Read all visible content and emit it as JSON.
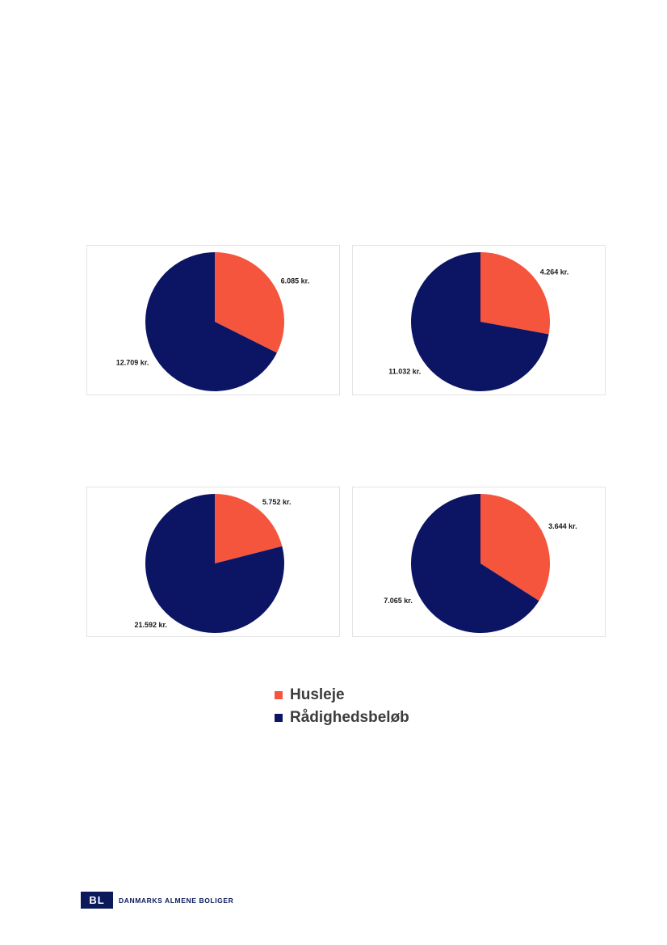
{
  "colors": {
    "husleje": "#f5553c",
    "raadighed": "#0c1464"
  },
  "chart_data": [
    {
      "type": "pie",
      "labels": [
        "Husleje",
        "Rådighedsbeløb"
      ],
      "values": [
        6085,
        12709
      ],
      "value_labels": [
        "6.085 kr.",
        "12.709 kr."
      ]
    },
    {
      "type": "pie",
      "labels": [
        "Husleje",
        "Rådighedsbeløb"
      ],
      "values": [
        4264,
        11032
      ],
      "value_labels": [
        "4.264 kr.",
        "11.032 kr."
      ]
    },
    {
      "type": "pie",
      "labels": [
        "Husleje",
        "Rådighedsbeløb"
      ],
      "values": [
        5752,
        21592
      ],
      "value_labels": [
        "5.752 kr.",
        "21.592 kr."
      ]
    },
    {
      "type": "pie",
      "labels": [
        "Husleje",
        "Rådighedsbeløb"
      ],
      "values": [
        3644,
        7065
      ],
      "value_labels": [
        "3.644 kr.",
        "7.065 kr."
      ]
    }
  ],
  "legend": {
    "items": [
      "Husleje",
      "Rådighedsbeløb"
    ]
  },
  "footer": {
    "logo": "BL",
    "org": "DANMARKS ALMENE BOLIGER"
  }
}
